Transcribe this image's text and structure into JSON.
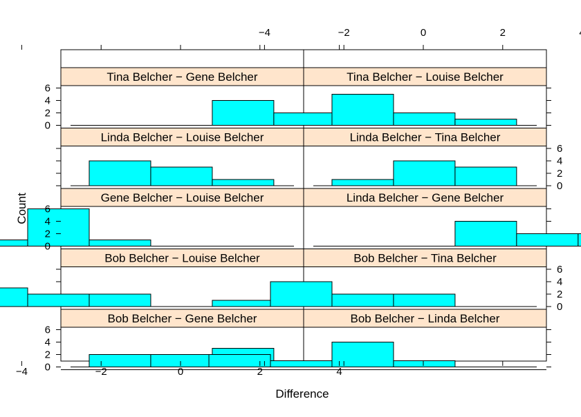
{
  "chart_data": {
    "type": "histogram-lattice",
    "xlabel": "Difference",
    "ylabel": "Count",
    "x_ticks": [
      -4,
      -2,
      0,
      2,
      4
    ],
    "y_ticks": [
      0,
      2,
      4,
      6
    ],
    "bin_width": 1.55,
    "panels": [
      {
        "label": "Bob Belcher − Gene Belcher",
        "row": 0,
        "col": 0,
        "bins": [
          {
            "x0": -2.3,
            "count": 2
          },
          {
            "x0": -0.75,
            "count": 2
          },
          {
            "x0": 0.8,
            "count": 3
          },
          {
            "x0": 3.9,
            "count": 1
          }
        ]
      },
      {
        "label": "Bob Belcher − Linda Belcher",
        "row": 0,
        "col": 1,
        "bins": [
          {
            "x0": -5.4,
            "count": 2
          },
          {
            "x0": -3.85,
            "count": 1
          },
          {
            "x0": -2.3,
            "count": 4
          },
          {
            "x0": -0.75,
            "count": 1
          }
        ]
      },
      {
        "label": "Bob Belcher − Louise Belcher",
        "row": 1,
        "col": 0,
        "bins": [
          {
            "x0": -5.4,
            "count": 3
          },
          {
            "x0": -3.85,
            "count": 2
          },
          {
            "x0": -2.3,
            "count": 2
          },
          {
            "x0": 0.8,
            "count": 1
          }
        ]
      },
      {
        "label": "Bob Belcher − Tina Belcher",
        "row": 1,
        "col": 1,
        "bins": [
          {
            "x0": -3.85,
            "count": 4
          },
          {
            "x0": -2.3,
            "count": 2
          },
          {
            "x0": -0.75,
            "count": 2
          }
        ]
      },
      {
        "label": "Gene Belcher − Louise Belcher",
        "row": 2,
        "col": 0,
        "bins": [
          {
            "x0": -5.4,
            "count": 1
          },
          {
            "x0": -3.85,
            "count": 6
          },
          {
            "x0": -2.3,
            "count": 1
          }
        ]
      },
      {
        "label": "Linda Belcher − Gene Belcher",
        "row": 2,
        "col": 1,
        "bins": [
          {
            "x0": 0.8,
            "count": 4
          },
          {
            "x0": 2.35,
            "count": 2
          },
          {
            "x0": 3.9,
            "count": 2
          }
        ]
      },
      {
        "label": "Linda Belcher − Louise Belcher",
        "row": 3,
        "col": 0,
        "bins": [
          {
            "x0": -2.3,
            "count": 4
          },
          {
            "x0": -0.75,
            "count": 3
          },
          {
            "x0": 0.8,
            "count": 1
          }
        ]
      },
      {
        "label": "Linda Belcher − Tina Belcher",
        "row": 3,
        "col": 1,
        "bins": [
          {
            "x0": -2.3,
            "count": 1
          },
          {
            "x0": -0.75,
            "count": 4
          },
          {
            "x0": 0.8,
            "count": 3
          }
        ]
      },
      {
        "label": "Tina Belcher − Gene Belcher",
        "row": 4,
        "col": 0,
        "bins": [
          {
            "x0": 0.8,
            "count": 4
          },
          {
            "x0": 2.35,
            "count": 2
          },
          {
            "x0": 3.9,
            "count": 2
          }
        ]
      },
      {
        "label": "Tina Belcher − Louise Belcher",
        "row": 4,
        "col": 1,
        "bins": [
          {
            "x0": -2.3,
            "count": 5
          },
          {
            "x0": -0.75,
            "count": 2
          },
          {
            "x0": 0.8,
            "count": 1
          }
        ]
      }
    ],
    "colors": {
      "bar_fill": "#00ffff",
      "strip_bg": "#ffe5cc",
      "outline": "#000000"
    }
  }
}
